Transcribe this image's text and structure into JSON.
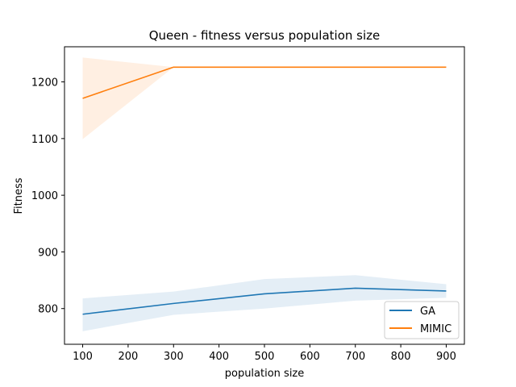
{
  "chart_data": {
    "type": "line",
    "title": "Queen - fitness versus population size",
    "xlabel": "population size",
    "ylabel": "Fitness",
    "xlim": [
      60,
      940
    ],
    "ylim": [
      737,
      1262
    ],
    "xticks": [
      100,
      200,
      300,
      400,
      500,
      600,
      700,
      800,
      900
    ],
    "yticks": [
      800,
      900,
      1000,
      1100,
      1200
    ],
    "legend_position": "lower-right",
    "grid": false,
    "series": [
      {
        "name": "GA",
        "color": "#1f77b4",
        "x": [
          100,
          300,
          500,
          700,
          900
        ],
        "y": [
          790,
          809,
          826,
          836,
          831
        ],
        "ci_lower": [
          760,
          789,
          800,
          814,
          819
        ],
        "ci_upper": [
          818,
          830,
          852,
          859,
          843
        ]
      },
      {
        "name": "MIMIC",
        "color": "#ff7f0e",
        "x": [
          100,
          300,
          500,
          700,
          900
        ],
        "y": [
          1171,
          1226,
          1226,
          1226,
          1226
        ],
        "ci_lower": [
          1099,
          1226,
          1226,
          1226,
          1226
        ],
        "ci_upper": [
          1243,
          1226,
          1226,
          1226,
          1226
        ]
      }
    ]
  }
}
